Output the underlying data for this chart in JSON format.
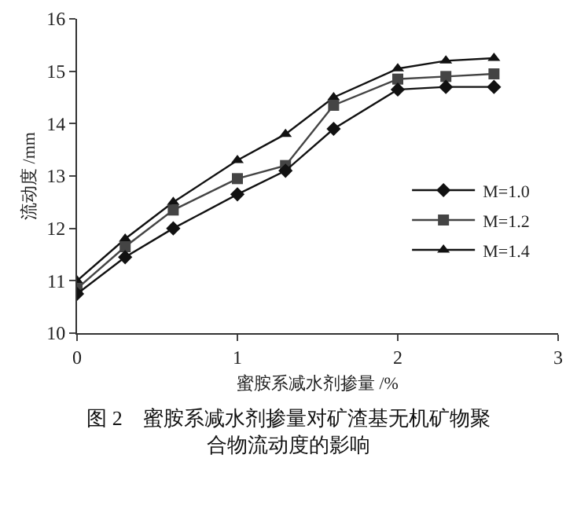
{
  "chart_data": {
    "type": "line",
    "title": "图 2　蜜胺系减水剂掺量对矿渣基无机矿物聚合物流动度的影响",
    "xlabel": "蜜胺系减水剂掺量 /%",
    "ylabel": "流动度 /mm",
    "x": [
      0,
      0.3,
      0.6,
      1.0,
      1.3,
      1.6,
      2.0,
      2.3,
      2.6
    ],
    "xlim": [
      0,
      3
    ],
    "xticks": [
      0,
      1,
      2,
      3
    ],
    "ylim": [
      10,
      16
    ],
    "yticks": [
      10,
      11,
      12,
      13,
      14,
      15,
      16
    ],
    "grid": false,
    "legend": "right",
    "series": [
      {
        "name": "M=1.0",
        "color": "#111111",
        "marker": "diamond",
        "values": [
          10.75,
          11.45,
          12.0,
          12.65,
          13.1,
          13.9,
          14.65,
          14.7,
          14.7
        ]
      },
      {
        "name": "M=1.2",
        "color": "#444444",
        "marker": "square",
        "values": [
          10.85,
          11.65,
          12.35,
          12.95,
          13.2,
          14.35,
          14.85,
          14.9,
          14.95
        ]
      },
      {
        "name": "M=1.4",
        "color": "#111111",
        "marker": "triangle",
        "values": [
          11.0,
          11.8,
          12.5,
          13.3,
          13.8,
          14.5,
          15.05,
          15.2,
          15.25
        ]
      }
    ]
  }
}
